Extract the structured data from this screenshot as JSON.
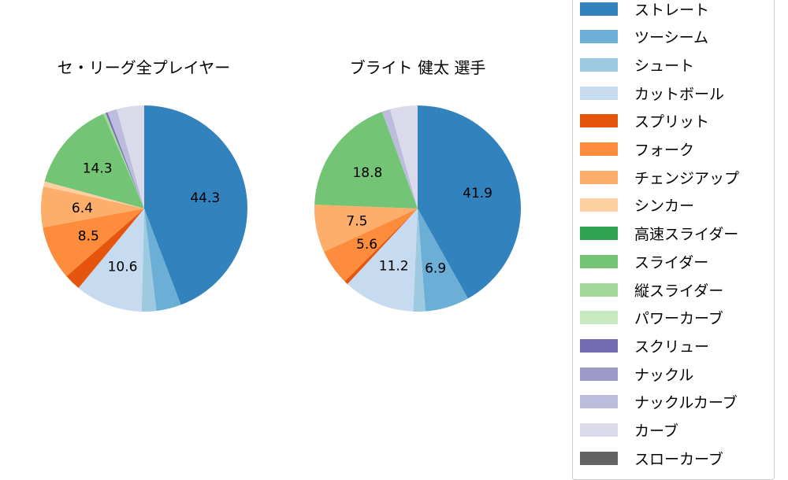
{
  "chart_data": [
    {
      "type": "pie",
      "title": "セ・リーグ全プレイヤー",
      "labels": [
        "ストレート",
        "ツーシーム",
        "シュート",
        "カットボール",
        "スプリット",
        "フォーク",
        "チェンジアップ",
        "シンカー",
        "高速スライダー",
        "スライダー",
        "縦スライダー",
        "パワーカーブ",
        "スクリュー",
        "ナックル",
        "ナックルカーブ",
        "カーブ",
        "スローカーブ"
      ],
      "values": [
        44.3,
        3.9,
        2.3,
        10.6,
        2.6,
        8.5,
        6.4,
        0.8,
        0,
        14.3,
        0.4,
        0,
        0.3,
        0,
        1.5,
        4.3,
        0
      ],
      "data_labels_shown": [
        "44.3",
        "10.6",
        "8.5",
        "14.3"
      ],
      "start_angle": "top, clockwise"
    },
    {
      "type": "pie",
      "title": "ブライト 健太  選手",
      "labels": [
        "ストレート",
        "ツーシーム",
        "シュート",
        "カットボール",
        "スプリット",
        "フォーク",
        "チェンジアップ",
        "シンカー",
        "高速スライダー",
        "スライダー",
        "縦スライダー",
        "パワーカーブ",
        "スクリュー",
        "ナックル",
        "ナックルカーブ",
        "カーブ",
        "スローカーブ"
      ],
      "values": [
        41.9,
        6.9,
        1.9,
        11.2,
        0.6,
        5.6,
        7.5,
        0,
        0,
        18.8,
        0,
        0,
        0,
        0,
        1.3,
        4.3,
        0
      ],
      "data_labels_shown": [
        "41.9",
        "6.9",
        "11.2",
        "5.6",
        "7.5",
        "18.8"
      ],
      "start_angle": "top, clockwise"
    }
  ],
  "titles": {
    "left": "セ・リーグ全プレイヤー",
    "right": "ブライト 健太  選手"
  },
  "legend": {
    "position": "right",
    "items": [
      {
        "label": "ストレート",
        "color": "#3182bd"
      },
      {
        "label": "ツーシーム",
        "color": "#6baed6"
      },
      {
        "label": "シュート",
        "color": "#9ecae1"
      },
      {
        "label": "カットボール",
        "color": "#c6dbef"
      },
      {
        "label": "スプリット",
        "color": "#e6550d"
      },
      {
        "label": "フォーク",
        "color": "#fd8d3c"
      },
      {
        "label": "チェンジアップ",
        "color": "#fdae6b"
      },
      {
        "label": "シンカー",
        "color": "#fdd0a2"
      },
      {
        "label": "高速スライダー",
        "color": "#31a354"
      },
      {
        "label": "スライダー",
        "color": "#74c476"
      },
      {
        "label": "縦スライダー",
        "color": "#a1d99b"
      },
      {
        "label": "パワーカーブ",
        "color": "#c7e9c0"
      },
      {
        "label": "スクリュー",
        "color": "#756bb1"
      },
      {
        "label": "ナックル",
        "color": "#9e9ac8"
      },
      {
        "label": "ナックルカーブ",
        "color": "#bcbddc"
      },
      {
        "label": "カーブ",
        "color": "#dadaeb"
      },
      {
        "label": "スローカーブ",
        "color": "#636363"
      }
    ]
  }
}
